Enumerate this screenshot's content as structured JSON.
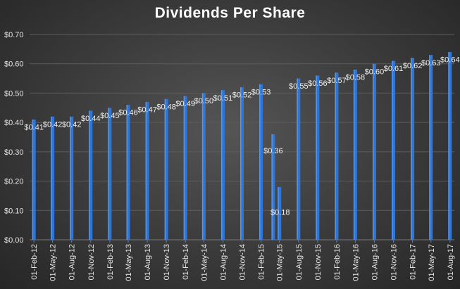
{
  "chart_data": {
    "type": "bar",
    "title": "Dividends Per Share",
    "xlabel": "",
    "ylabel": "",
    "ylim": [
      0,
      0.7
    ],
    "y_ticks": [
      "$0.00",
      "$0.10",
      "$0.20",
      "$0.30",
      "$0.40",
      "$0.50",
      "$0.60",
      "$0.70"
    ],
    "y_tick_values": [
      0,
      0.1,
      0.2,
      0.3,
      0.4,
      0.5,
      0.6,
      0.7
    ],
    "grid": true,
    "legend": "none",
    "bar_color": "#2e75d6",
    "x_tick_labels": [
      "01-Feb-12",
      "01-May-12",
      "01-Aug-12",
      "01-Nov-12",
      "01-Feb-13",
      "01-May-13",
      "01-Aug-13",
      "01-Nov-13",
      "01-Feb-14",
      "01-May-14",
      "01-Aug-14",
      "01-Nov-14",
      "01-Feb-15",
      "01-May-15",
      "01-Aug-15",
      "01-Nov-15",
      "01-Feb-16",
      "01-May-16",
      "01-Aug-16",
      "01-Nov-16",
      "01-Feb-17",
      "01-May-17",
      "01-Aug-17"
    ],
    "points": [
      {
        "date": "2012-02-01",
        "value": 0.41,
        "label": "$0.41"
      },
      {
        "date": "2012-05-01",
        "value": 0.42,
        "label": "$0.42"
      },
      {
        "date": "2012-08-01",
        "value": 0.42,
        "label": "$0.42"
      },
      {
        "date": "2012-11-01",
        "value": 0.44,
        "label": "$0.44"
      },
      {
        "date": "2013-02-01",
        "value": 0.45,
        "label": "$0.45"
      },
      {
        "date": "2013-05-01",
        "value": 0.46,
        "label": "$0.46"
      },
      {
        "date": "2013-08-01",
        "value": 0.47,
        "label": "$0.47"
      },
      {
        "date": "2013-11-01",
        "value": 0.48,
        "label": "$0.48"
      },
      {
        "date": "2014-02-01",
        "value": 0.49,
        "label": "$0.49"
      },
      {
        "date": "2014-05-01",
        "value": 0.5,
        "label": "$0.50"
      },
      {
        "date": "2014-08-01",
        "value": 0.51,
        "label": "$0.51"
      },
      {
        "date": "2014-11-01",
        "value": 0.52,
        "label": "$0.52"
      },
      {
        "date": "2015-02-01",
        "value": 0.53,
        "label": "$0.53"
      },
      {
        "date": "2015-04-01",
        "value": 0.36,
        "label": "$0.36"
      },
      {
        "date": "2015-05-01",
        "value": 0.18,
        "label": "$0.18"
      },
      {
        "date": "2015-08-01",
        "value": 0.55,
        "label": "$0.55"
      },
      {
        "date": "2015-11-01",
        "value": 0.56,
        "label": "$0.56"
      },
      {
        "date": "2016-02-01",
        "value": 0.57,
        "label": "$0.57"
      },
      {
        "date": "2016-05-01",
        "value": 0.58,
        "label": "$0.58"
      },
      {
        "date": "2016-08-01",
        "value": 0.6,
        "label": "$0.60"
      },
      {
        "date": "2016-11-01",
        "value": 0.61,
        "label": "$0.61"
      },
      {
        "date": "2017-02-01",
        "value": 0.62,
        "label": "$0.62"
      },
      {
        "date": "2017-05-01",
        "value": 0.63,
        "label": "$0.63"
      },
      {
        "date": "2017-08-01",
        "value": 0.64,
        "label": "$0.64"
      }
    ]
  }
}
